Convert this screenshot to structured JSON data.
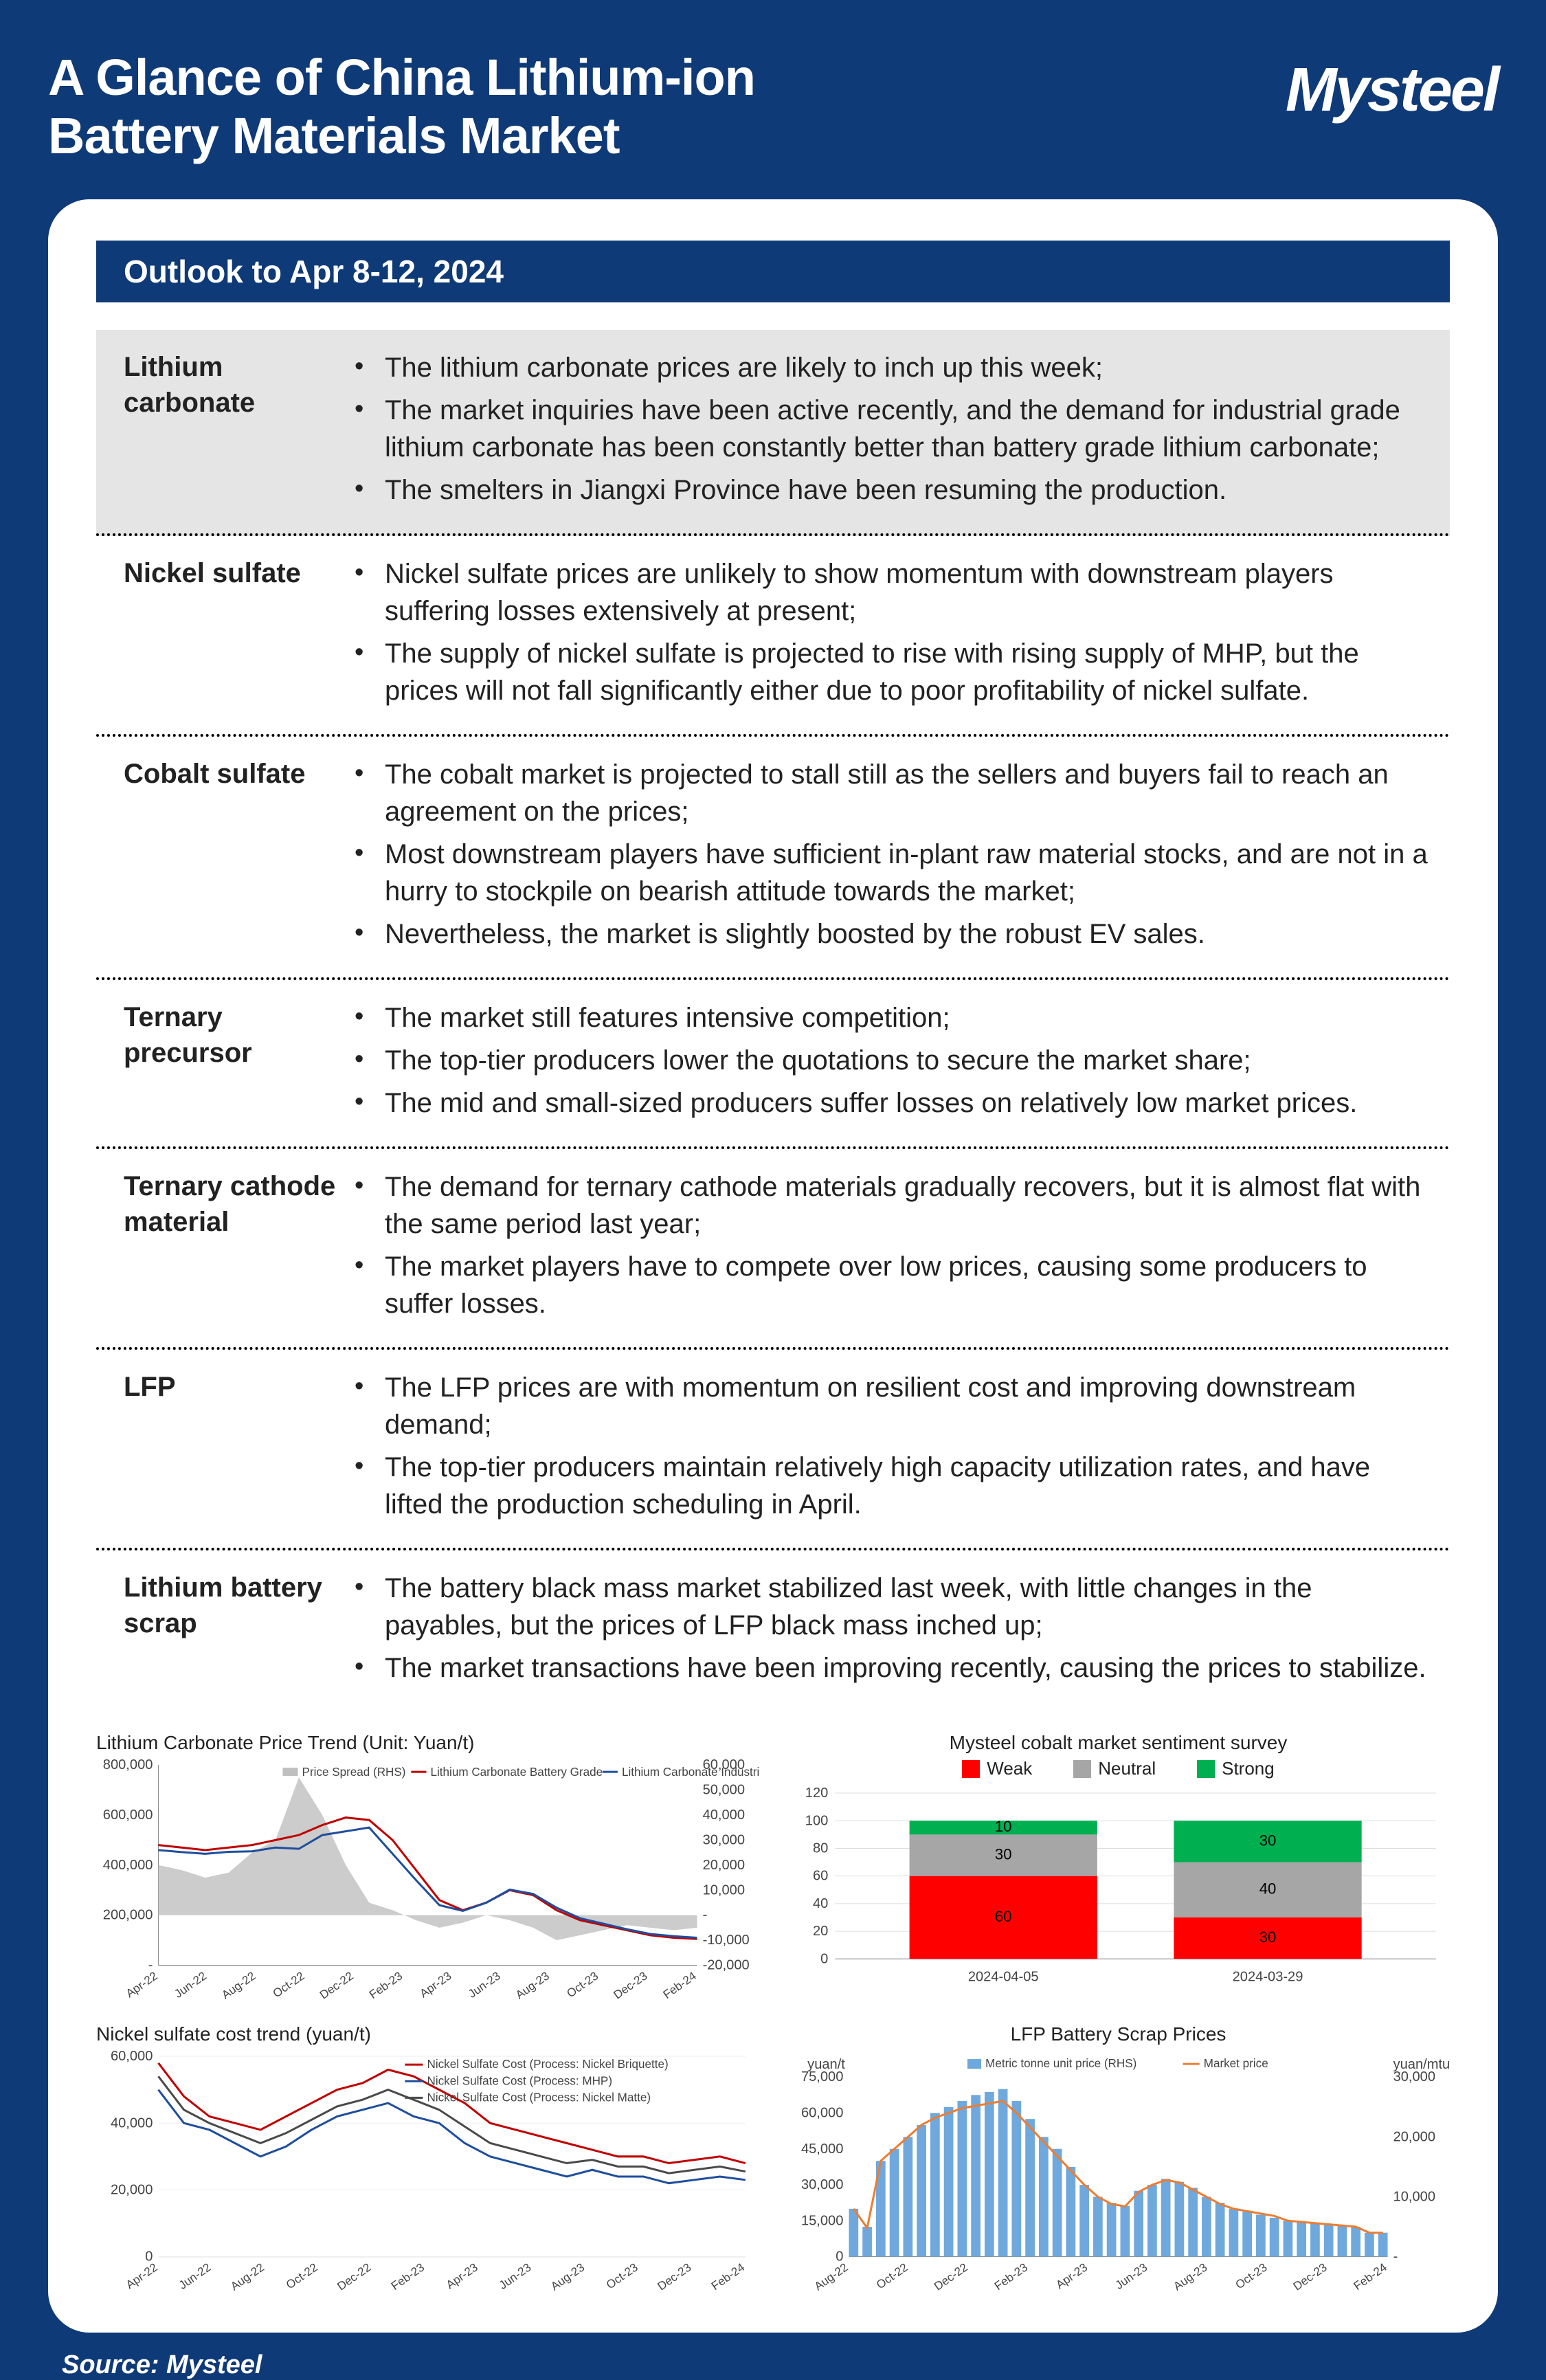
{
  "header": {
    "title_l1": "A Glance of China Lithium-ion",
    "title_l2": "Battery Materials Market",
    "logo": "Mysteel"
  },
  "outlook_label": "Outlook to Apr 8-12, 2024",
  "sections": [
    {
      "name": "Lithium carbonate",
      "bullets": [
        "The lithium carbonate prices are likely to inch up this week;",
        "The market inquiries have been active recently, and the demand for industrial grade lithium carbonate has been constantly better than battery grade lithium carbonate;",
        "The smelters in Jiangxi Province have been resuming the production."
      ]
    },
    {
      "name": "Nickel sulfate",
      "bullets": [
        "Nickel sulfate prices are unlikely to show momentum with downstream players suffering losses extensively at present;",
        "The supply of nickel sulfate is projected to rise with rising supply of MHP, but the prices will not fall significantly either due to poor profitability of nickel sulfate."
      ]
    },
    {
      "name": "Cobalt sulfate",
      "bullets": [
        "The cobalt market is projected to stall still as the sellers and buyers fail to reach an agreement on the prices;",
        "Most downstream players have sufficient in-plant raw material stocks, and are not in a hurry to stockpile on bearish attitude towards the market;",
        "Nevertheless, the market is slightly boosted by the robust EV sales."
      ]
    },
    {
      "name": "Ternary precursor",
      "bullets": [
        "The market still features intensive competition;",
        "The top-tier producers lower the quotations to secure the market share;",
        "The mid and small-sized producers suffer losses on relatively low market prices."
      ]
    },
    {
      "name": "Ternary cathode material",
      "bullets": [
        "The demand for ternary cathode materials gradually recovers, but it is almost flat with the same period last year;",
        "The market players have to compete over low prices, causing some producers to suffer losses."
      ]
    },
    {
      "name": "LFP",
      "bullets": [
        "The LFP prices are with momentum on resilient cost and improving downstream demand;",
        "The top-tier producers maintain relatively high capacity utilization rates, and have lifted the production scheduling in April."
      ]
    },
    {
      "name": "Lithium battery scrap",
      "bullets": [
        "The battery black mass market stabilized last week, with little changes in the payables, but the prices of LFP black mass inched up;",
        "The market transactions have been improving recently, causing the prices to stabilize."
      ]
    }
  ],
  "footer": "Source: Mysteel",
  "chart1": {
    "type": "dual-axis-line-area",
    "title": "Lithium Carbonate Price Trend (Unit: Yuan/t)",
    "x_labels": [
      "Apr-22",
      "Jun-22",
      "Aug-22",
      "Oct-22",
      "Dec-22",
      "Feb-23",
      "Apr-23",
      "Jun-23",
      "Aug-23",
      "Oct-23",
      "Dec-23",
      "Feb-24"
    ],
    "y_left": {
      "min": 0,
      "max": 800000,
      "step": 200000,
      "labels": [
        "-",
        "200,000",
        "400,000",
        "600,000",
        "800,000"
      ]
    },
    "y_right": {
      "min": -20000,
      "max": 60000,
      "step": 10000,
      "labels": [
        "-20,000",
        "-10,000",
        "-",
        "10,000",
        "20,000",
        "30,000",
        "40,000",
        "50,000",
        "60,000"
      ]
    },
    "series": {
      "spread": {
        "label": "Price Spread (RHS)",
        "color": "#bfbfbf",
        "values": [
          20000,
          18000,
          15000,
          17000,
          25000,
          30000,
          55000,
          40000,
          20000,
          5000,
          2000,
          -2000,
          -5000,
          -3000,
          0,
          -2000,
          -5000,
          -10000,
          -8000,
          -6000,
          -4000,
          -5000,
          -6000,
          -5000
        ]
      },
      "battery": {
        "label": "Lithium Carbonate Battery Grade",
        "color": "#c00000",
        "values": [
          480000,
          470000,
          460000,
          470000,
          480000,
          500000,
          520000,
          560000,
          590000,
          580000,
          500000,
          380000,
          260000,
          220000,
          250000,
          300000,
          280000,
          220000,
          180000,
          160000,
          140000,
          120000,
          110000,
          105000
        ]
      },
      "industrial": {
        "label": "Lithium Carbonate Industrial Grade",
        "color": "#1f4e9c",
        "values": [
          460000,
          452000,
          445000,
          453000,
          455000,
          470000,
          465000,
          520000,
          535000,
          550000,
          445000,
          340000,
          240000,
          217000,
          250000,
          302000,
          285000,
          230000,
          188000,
          166000,
          144000,
          125000,
          116000,
          110000
        ]
      }
    }
  },
  "chart2": {
    "type": "stacked-bar",
    "title": "Mysteel cobalt market sentiment survey",
    "y": {
      "min": 0,
      "max": 120,
      "step": 20
    },
    "categories": [
      "2024-04-05",
      "2024-03-29"
    ],
    "legend": {
      "weak": "Weak",
      "neutral": "Neutral",
      "strong": "Strong"
    },
    "colors": {
      "weak": "#ff0000",
      "neutral": "#a6a6a6",
      "strong": "#00b050"
    },
    "data": [
      {
        "weak": 60,
        "neutral": 30,
        "strong": 10
      },
      {
        "weak": 30,
        "neutral": 40,
        "strong": 30
      }
    ]
  },
  "chart3": {
    "type": "multi-line",
    "title": "Nickel sulfate cost trend (yuan/t)",
    "x_labels": [
      "Apr-22",
      "Jun-22",
      "Aug-22",
      "Oct-22",
      "Dec-22",
      "Feb-23",
      "Apr-23",
      "Jun-23",
      "Aug-23",
      "Oct-23",
      "Dec-23",
      "Feb-24"
    ],
    "y": {
      "min": 0,
      "max": 60000,
      "step": 20000,
      "labels": [
        "0",
        "20,000",
        "40,000",
        "60,000"
      ]
    },
    "series": {
      "briquette": {
        "label": "Nickel Sulfate Cost (Process: Nickel Briquette)",
        "color": "#c00000",
        "values": [
          58000,
          48000,
          42000,
          40000,
          38000,
          42000,
          46000,
          50000,
          52000,
          56000,
          54000,
          50000,
          46000,
          40000,
          38000,
          36000,
          34000,
          32000,
          30000,
          30000,
          28000,
          29000,
          30000,
          28000
        ]
      },
      "mhp": {
        "label": "Nickel Sulfate Cost (Process: MHP)",
        "color": "#1f4e9c",
        "values": [
          50000,
          40000,
          38000,
          34000,
          30000,
          33000,
          38000,
          42000,
          44000,
          46000,
          42000,
          40000,
          34000,
          30000,
          28000,
          26000,
          24000,
          26000,
          24000,
          24000,
          22000,
          23000,
          24000,
          23000
        ]
      },
      "matte": {
        "label": "Nickel Sulfate Cost (Process: Nickel Matte)",
        "color": "#4a4a4a",
        "values": [
          54000,
          44000,
          40000,
          37000,
          34000,
          37000,
          41000,
          45000,
          47000,
          50000,
          47000,
          44000,
          39000,
          34000,
          32000,
          30000,
          28000,
          29000,
          27000,
          27000,
          25000,
          26000,
          27000,
          25500
        ]
      }
    }
  },
  "chart4": {
    "type": "bar-line-dual",
    "title": "LFP Battery Scrap Prices",
    "x_labels": [
      "Aug-22",
      "Oct-22",
      "Dec-22",
      "Feb-23",
      "Apr-23",
      "Jun-23",
      "Aug-23",
      "Oct-23",
      "Dec-23",
      "Feb-24"
    ],
    "y_left": {
      "unit": "yuan/t",
      "min": 0,
      "max": 75000,
      "step": 15000,
      "labels": [
        "0",
        "15,000",
        "30,000",
        "45,000",
        "60,000",
        "75,000"
      ]
    },
    "y_right": {
      "unit": "yuan/mtu",
      "min": 0,
      "max": 30000,
      "step": 10000,
      "labels": [
        "-",
        "10,000",
        "20,000",
        "30,000"
      ]
    },
    "legend": {
      "bars": "Metric tonne unit price (RHS)",
      "line": "Market price"
    },
    "colors": {
      "bars": "#6fa8dc",
      "line": "#ed7d31"
    },
    "bar_values_rhs": [
      8000,
      5000,
      16000,
      18000,
      20000,
      22000,
      24000,
      25000,
      26000,
      27000,
      27500,
      28000,
      26000,
      23000,
      20000,
      18000,
      15000,
      12000,
      10000,
      9000,
      8500,
      11000,
      12000,
      13000,
      12500,
      11500,
      10000,
      9000,
      8000,
      7500,
      7000,
      6500,
      6000,
      5800,
      5600,
      5400,
      5200,
      5000,
      4000,
      4000
    ],
    "line_values_lhs": [
      20000,
      12000,
      40000,
      45000,
      50000,
      55000,
      58000,
      60000,
      62000,
      63000,
      64000,
      65000,
      60000,
      54000,
      48000,
      42000,
      36000,
      30000,
      25000,
      22000,
      21000,
      27000,
      30000,
      32000,
      31000,
      28000,
      25000,
      22000,
      20000,
      19000,
      18000,
      17000,
      15000,
      14500,
      14000,
      13500,
      13000,
      12500,
      10000,
      10000
    ]
  }
}
